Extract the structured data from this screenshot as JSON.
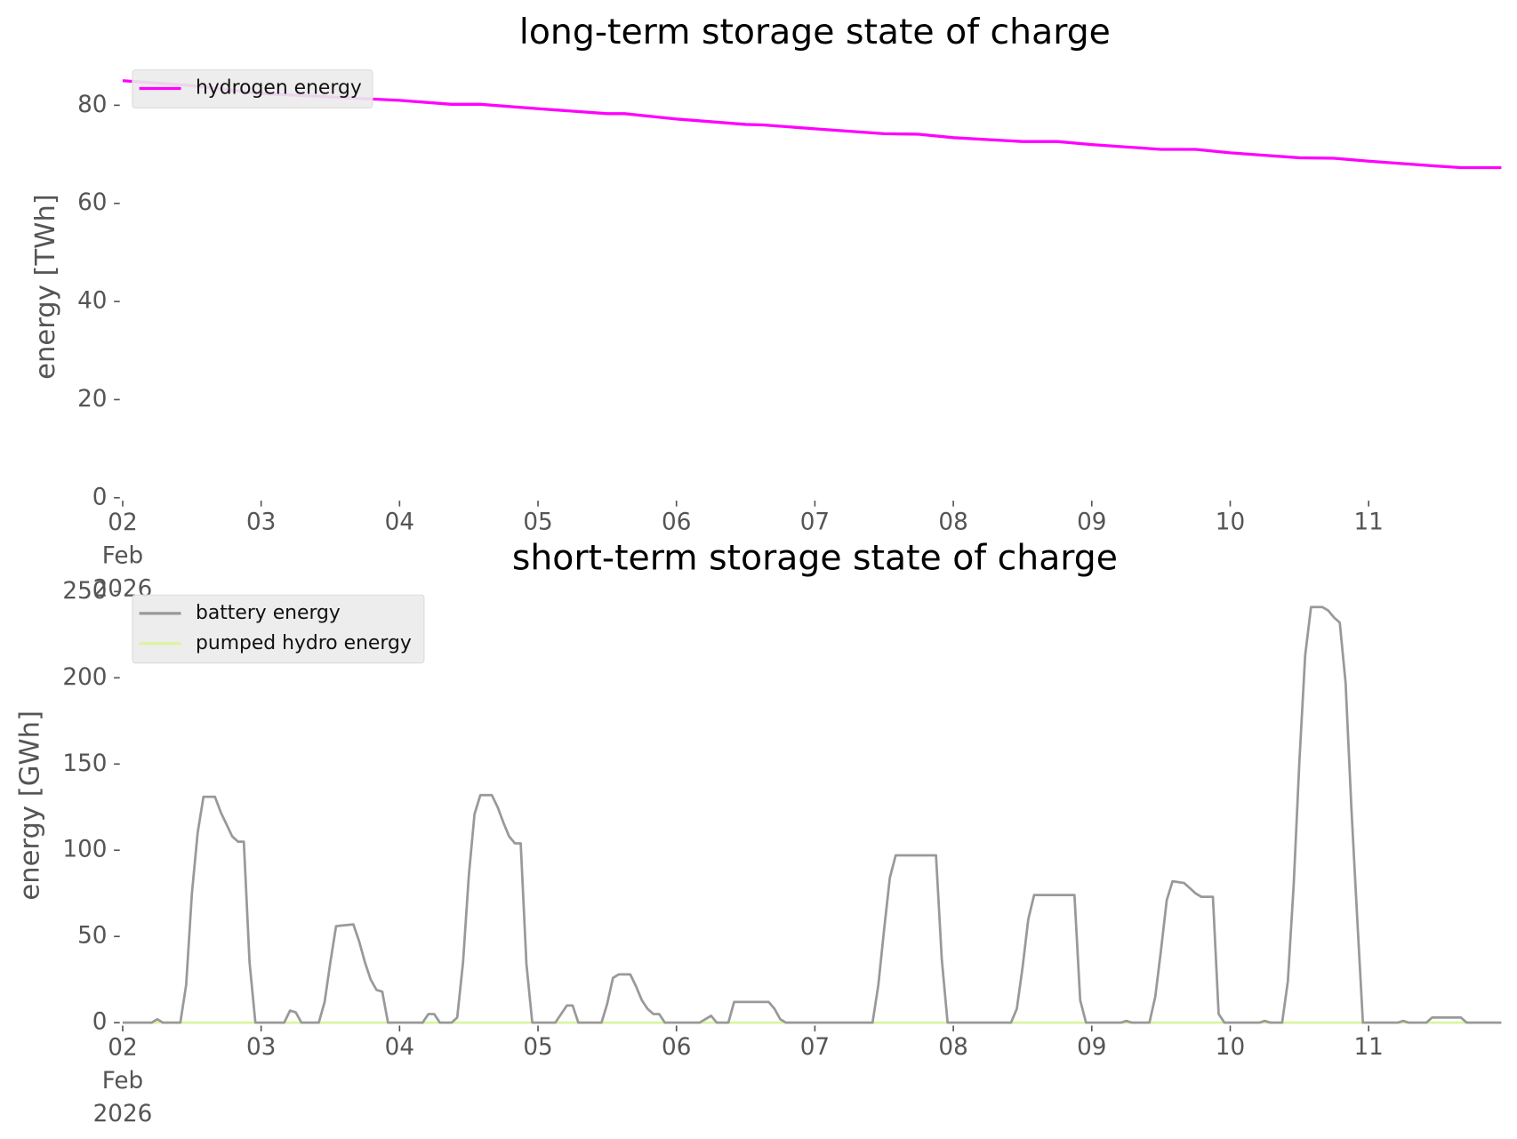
{
  "chart_data": [
    {
      "type": "line",
      "title": "long-term storage state of charge",
      "ylabel": "energy [TWh]",
      "xlim": [
        "2026-02-02 00:00",
        "2026-02-12 00:00"
      ],
      "xticks": [
        {
          "value": "2026-02-02 00:00",
          "label": "02\nFeb\n2026"
        },
        {
          "value": "2026-02-03 00:00",
          "label": "03"
        },
        {
          "value": "2026-02-04 00:00",
          "label": "04"
        },
        {
          "value": "2026-02-05 00:00",
          "label": "05"
        },
        {
          "value": "2026-02-06 00:00",
          "label": "06"
        },
        {
          "value": "2026-02-07 00:00",
          "label": "07"
        },
        {
          "value": "2026-02-08 00:00",
          "label": "08"
        },
        {
          "value": "2026-02-09 00:00",
          "label": "09"
        },
        {
          "value": "2026-02-10 00:00",
          "label": "10"
        },
        {
          "value": "2026-02-11 00:00",
          "label": "11"
        }
      ],
      "ylim": [
        0,
        86
      ],
      "yticks": [
        0,
        20,
        40,
        60,
        80
      ],
      "legend": "upper left",
      "series": [
        {
          "name": "hydrogen energy",
          "color": "#ff00ff",
          "x": [
            "2026-02-02 00:00",
            "2026-02-02 12:00",
            "2026-02-03 00:00",
            "2026-02-04 00:00",
            "2026-02-04 09:00",
            "2026-02-04 14:00",
            "2026-02-05 00:00",
            "2026-02-05 12:00",
            "2026-02-05 15:00",
            "2026-02-06 00:00",
            "2026-02-06 12:00",
            "2026-02-06 15:00",
            "2026-02-07 00:00",
            "2026-02-07 12:00",
            "2026-02-07 18:00",
            "2026-02-08 00:00",
            "2026-02-08 12:00",
            "2026-02-08 18:00",
            "2026-02-09 00:00",
            "2026-02-09 12:00",
            "2026-02-09 18:00",
            "2026-02-10 00:00",
            "2026-02-10 12:00",
            "2026-02-10 18:00",
            "2026-02-11 00:00",
            "2026-02-11 12:00",
            "2026-02-11 16:00",
            "2026-02-11 23:00"
          ],
          "values": [
            85,
            84,
            82.4,
            81,
            80.2,
            80.2,
            79.3,
            78.3,
            78.3,
            77.2,
            76.1,
            76,
            75.2,
            74.2,
            74.1,
            73.4,
            72.6,
            72.6,
            72,
            71,
            71,
            70.3,
            69.3,
            69.2,
            68.6,
            67.6,
            67.3,
            67.3
          ]
        }
      ]
    },
    {
      "type": "line",
      "title": "short-term storage state of charge",
      "ylabel": "energy [GWh]",
      "xlim": [
        "2026-02-02 00:00",
        "2026-02-12 00:00"
      ],
      "xticks": [
        {
          "value": "2026-02-02 00:00",
          "label": "02\nFeb\n2026"
        },
        {
          "value": "2026-02-03 00:00",
          "label": "03"
        },
        {
          "value": "2026-02-04 00:00",
          "label": "04"
        },
        {
          "value": "2026-02-05 00:00",
          "label": "05"
        },
        {
          "value": "2026-02-06 00:00",
          "label": "06"
        },
        {
          "value": "2026-02-07 00:00",
          "label": "07"
        },
        {
          "value": "2026-02-08 00:00",
          "label": "08"
        },
        {
          "value": "2026-02-09 00:00",
          "label": "09"
        },
        {
          "value": "2026-02-10 00:00",
          "label": "10"
        },
        {
          "value": "2026-02-11 00:00",
          "label": "11"
        }
      ],
      "ylim": [
        0,
        252
      ],
      "yticks": [
        0,
        50,
        100,
        150,
        200,
        250
      ],
      "legend": "upper left",
      "series": [
        {
          "name": "battery energy",
          "color": "#999999",
          "x": [
            "2026-02-02 00:00",
            "2026-02-02 05:00",
            "2026-02-02 06:00",
            "2026-02-02 07:00",
            "2026-02-02 10:00",
            "2026-02-02 11:00",
            "2026-02-02 12:00",
            "2026-02-02 13:00",
            "2026-02-02 14:00",
            "2026-02-02 16:00",
            "2026-02-02 17:00",
            "2026-02-02 19:00",
            "2026-02-02 20:00",
            "2026-02-02 21:00",
            "2026-02-02 22:00",
            "2026-02-02 23:00",
            "2026-02-03 04:00",
            "2026-02-03 05:00",
            "2026-02-03 06:00",
            "2026-02-03 07:00",
            "2026-02-03 10:00",
            "2026-02-03 11:00",
            "2026-02-03 12:00",
            "2026-02-03 13:00",
            "2026-02-03 16:00",
            "2026-02-03 17:00",
            "2026-02-03 18:00",
            "2026-02-03 19:00",
            "2026-02-03 20:00",
            "2026-02-03 21:00",
            "2026-02-03 22:00",
            "2026-02-04 04:00",
            "2026-02-04 05:00",
            "2026-02-04 06:00",
            "2026-02-04 07:00",
            "2026-02-04 09:00",
            "2026-02-04 10:00",
            "2026-02-04 11:00",
            "2026-02-04 12:00",
            "2026-02-04 13:00",
            "2026-02-04 14:00",
            "2026-02-04 16:00",
            "2026-02-04 17:00",
            "2026-02-04 18:00",
            "2026-02-04 19:00",
            "2026-02-04 20:00",
            "2026-02-04 21:00",
            "2026-02-04 22:00",
            "2026-02-04 23:00",
            "2026-02-05 03:00",
            "2026-02-05 05:00",
            "2026-02-05 06:00",
            "2026-02-05 07:00",
            "2026-02-05 11:00",
            "2026-02-05 12:00",
            "2026-02-05 13:00",
            "2026-02-05 14:00",
            "2026-02-05 16:00",
            "2026-02-05 17:00",
            "2026-02-05 18:00",
            "2026-02-05 19:00",
            "2026-02-05 20:00",
            "2026-02-05 21:00",
            "2026-02-05 22:00",
            "2026-02-06 04:00",
            "2026-02-06 06:00",
            "2026-02-06 07:00",
            "2026-02-06 09:00",
            "2026-02-06 10:00",
            "2026-02-06 16:00",
            "2026-02-06 17:00",
            "2026-02-06 18:00",
            "2026-02-06 19:00",
            "2026-02-07 10:00",
            "2026-02-07 11:00",
            "2026-02-07 12:00",
            "2026-02-07 13:00",
            "2026-02-07 14:00",
            "2026-02-07 21:00",
            "2026-02-07 22:00",
            "2026-02-07 23:00",
            "2026-02-08 10:00",
            "2026-02-08 11:00",
            "2026-02-08 12:00",
            "2026-02-08 13:00",
            "2026-02-08 14:00",
            "2026-02-08 21:00",
            "2026-02-08 22:00",
            "2026-02-08 23:00",
            "2026-02-09 05:00",
            "2026-02-09 06:00",
            "2026-02-09 07:00",
            "2026-02-09 10:00",
            "2026-02-09 11:00",
            "2026-02-09 12:00",
            "2026-02-09 13:00",
            "2026-02-09 14:00",
            "2026-02-09 16:00",
            "2026-02-09 17:00",
            "2026-02-09 18:00",
            "2026-02-09 19:00",
            "2026-02-09 21:00",
            "2026-02-09 22:00",
            "2026-02-09 23:00",
            "2026-02-10 05:00",
            "2026-02-10 06:00",
            "2026-02-10 07:00",
            "2026-02-10 09:00",
            "2026-02-10 10:00",
            "2026-02-10 11:00",
            "2026-02-10 12:00",
            "2026-02-10 13:00",
            "2026-02-10 14:00",
            "2026-02-10 16:00",
            "2026-02-10 17:00",
            "2026-02-10 18:00",
            "2026-02-10 19:00",
            "2026-02-10 20:00",
            "2026-02-10 21:00",
            "2026-02-10 22:00",
            "2026-02-10 23:00",
            "2026-02-11 05:00",
            "2026-02-11 06:00",
            "2026-02-11 07:00",
            "2026-02-11 10:00",
            "2026-02-11 11:00",
            "2026-02-11 16:00",
            "2026-02-11 17:00",
            "2026-02-11 23:00"
          ],
          "values": [
            0,
            0,
            2,
            0,
            0,
            22,
            75,
            110,
            131,
            131,
            122,
            108,
            105,
            105,
            35,
            0,
            0,
            7,
            6,
            0,
            0,
            12,
            35,
            56,
            57,
            47,
            35,
            25,
            19,
            18,
            0,
            0,
            5,
            5,
            0,
            0,
            3,
            35,
            85,
            121,
            132,
            132,
            125,
            116,
            108,
            104,
            104,
            34,
            0,
            0,
            10,
            10,
            0,
            0,
            11,
            26,
            28,
            28,
            21,
            13,
            8,
            5,
            5,
            0,
            0,
            4,
            0,
            0,
            12,
            12,
            8,
            2,
            0,
            0,
            22,
            54,
            84,
            97,
            97,
            37,
            0,
            0,
            8,
            32,
            60,
            74,
            74,
            13,
            0,
            0,
            1,
            0,
            0,
            15,
            42,
            71,
            82,
            81,
            78,
            75,
            73,
            73,
            5,
            0,
            0,
            1,
            0,
            0,
            24,
            80,
            152,
            213,
            241,
            241,
            239,
            235,
            232,
            197,
            125,
            62,
            0,
            0,
            1,
            0,
            0,
            3,
            3,
            0,
            0
          ]
        },
        {
          "name": "pumped hydro energy",
          "color": "#d9f5a0",
          "x": [
            "2026-02-02 00:00",
            "2026-02-11 23:00"
          ],
          "values": [
            0,
            0
          ]
        }
      ]
    }
  ]
}
